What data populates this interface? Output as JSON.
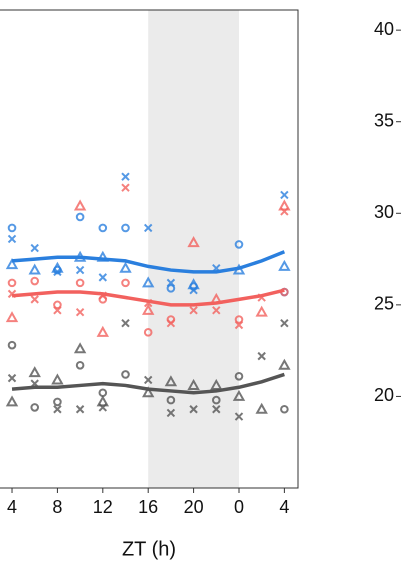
{
  "chart_data": [
    {
      "type": "scatter",
      "xlabel": "ZT (h)",
      "xlim": [
        3,
        29.2
      ],
      "ylim": [
        15,
        41.1
      ],
      "xticks": [
        4,
        8,
        12,
        16,
        20,
        {
          "value": 24,
          "label": "0"
        },
        {
          "value": 28,
          "label": "4"
        }
      ],
      "shaded": [
        16,
        24
      ],
      "x": [
        4,
        6,
        8,
        10,
        12,
        14,
        16,
        18,
        20,
        22,
        24,
        26,
        28
      ],
      "series": [
        {
          "color": "#2a7fde",
          "marker": "circle",
          "values": [
            29.2,
            null,
            26.9,
            29.8,
            29.2,
            29.2,
            null,
            25.9,
            26.0,
            null,
            28.3,
            null,
            25.7
          ]
        },
        {
          "color": "#2a7fde",
          "marker": "cross",
          "values": [
            28.6,
            28.1,
            26.8,
            26.9,
            26.5,
            32.0,
            29.2,
            26.2,
            25.8,
            27.0,
            null,
            null,
            31.0
          ]
        },
        {
          "color": "#2a7fde",
          "marker": "triangle",
          "values": [
            27.2,
            26.9,
            27.0,
            27.6,
            27.6,
            27.0,
            26.2,
            null,
            26.1,
            null,
            26.9,
            null,
            27.1
          ]
        },
        {
          "color": "#f2615e",
          "marker": "circle",
          "values": [
            26.2,
            26.3,
            25.0,
            26.2,
            25.3,
            26.2,
            23.5,
            24.2,
            null,
            null,
            24.2,
            null,
            25.7
          ]
        },
        {
          "color": "#f2615e",
          "marker": "cross",
          "values": [
            25.6,
            25.3,
            24.7,
            24.6,
            25.5,
            31.4,
            25.1,
            24.0,
            24.7,
            24.7,
            23.9,
            25.4,
            30.1
          ]
        },
        {
          "color": "#f2615e",
          "marker": "triangle",
          "values": [
            24.3,
            null,
            null,
            30.4,
            23.5,
            null,
            24.7,
            null,
            28.4,
            25.3,
            null,
            24.6,
            30.4
          ]
        },
        {
          "color": "#555555",
          "marker": "circle",
          "values": [
            22.8,
            19.4,
            19.7,
            21.7,
            20.2,
            21.2,
            null,
            19.8,
            null,
            19.8,
            21.1,
            null,
            19.3
          ]
        },
        {
          "color": "#555555",
          "marker": "cross",
          "values": [
            21.0,
            20.7,
            19.3,
            19.3,
            19.4,
            24.0,
            20.9,
            19.1,
            19.3,
            19.3,
            18.9,
            22.2,
            24.0
          ]
        },
        {
          "color": "#555555",
          "marker": "triangle",
          "values": [
            19.7,
            21.3,
            20.9,
            22.6,
            19.7,
            null,
            20.2,
            20.8,
            20.6,
            20.6,
            20.0,
            19.3,
            21.7
          ]
        },
        {
          "color": "#2a7fde",
          "marker": "line",
          "values": [
            27.4,
            27.5,
            27.6,
            27.6,
            27.5,
            27.4,
            27.1,
            26.9,
            26.8,
            26.8,
            27.0,
            27.4,
            27.9
          ]
        },
        {
          "color": "#f2615e",
          "marker": "line",
          "values": [
            25.5,
            25.6,
            25.7,
            25.7,
            25.6,
            25.4,
            25.2,
            25.0,
            25.0,
            25.1,
            25.3,
            25.5,
            25.8
          ]
        },
        {
          "color": "#555555",
          "marker": "line",
          "values": [
            20.4,
            20.5,
            20.5,
            20.6,
            20.7,
            20.6,
            20.4,
            20.3,
            20.2,
            20.3,
            20.5,
            20.8,
            21.2
          ]
        }
      ]
    },
    {
      "type": "axis",
      "ylim": [
        15,
        41.1
      ],
      "yticks": [
        20,
        25,
        30,
        35,
        40
      ]
    }
  ]
}
